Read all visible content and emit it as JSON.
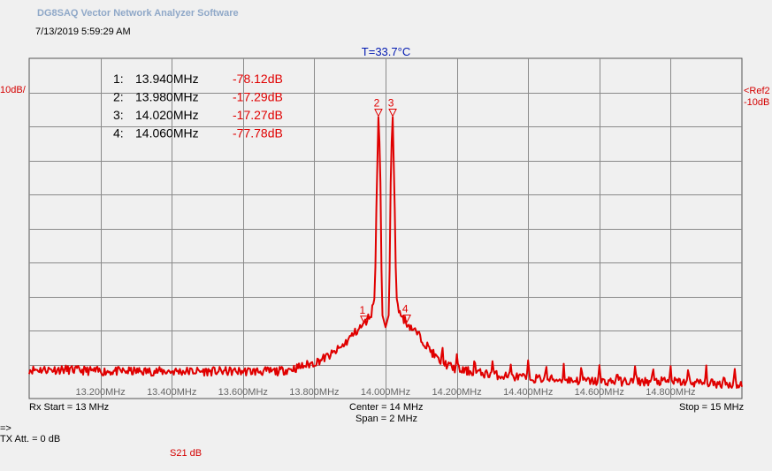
{
  "app_title": "DG8SAQ Vector Network Analyzer Software",
  "timestamp": "7/13/2019   5:59:29 AM",
  "temperature": "T=33.7°C",
  "left_ref": "10dB/",
  "right_ref_line1": "<Ref2",
  "right_ref_line2": "-10dB",
  "rx_start": "Rx Start = 13 MHz",
  "center": "Center = 14 MHz",
  "span": "Span = 2 MHz",
  "stop": "Stop = 15 MHz",
  "arrow": "=>",
  "tx_att": "TX Att.  = 0 dB",
  "trace_label": "S21  dB",
  "colors": {
    "trace": "#e00000",
    "grid": "#8a8a8a",
    "plot_bg": "#f0f0f0",
    "temperature": "#0018b0",
    "title": "#8fa8c8"
  },
  "chart_data": {
    "type": "line",
    "title": "",
    "xlabel": "",
    "ylabel": "",
    "x_unit": "MHz",
    "y_unit": "dB",
    "xlim": [
      13.0,
      15.0
    ],
    "ylim": [
      -100,
      0
    ],
    "y_scale_per_div": 10,
    "x_tick_labels": [
      "13.200MHz",
      "13.400MHz",
      "13.600MHz",
      "13.800MHz",
      "14.000MHz",
      "14.200MHz",
      "14.400MHz",
      "14.600MHz",
      "14.800MHz"
    ],
    "x_ticks": [
      13.2,
      13.4,
      13.6,
      13.8,
      14.0,
      14.2,
      14.4,
      14.6,
      14.8
    ],
    "grid": true,
    "markers": [
      {
        "id": "1",
        "index_label": "1:",
        "freq": "13.940MHz",
        "value": "-78.12dB",
        "x": 13.94,
        "y": -78.12
      },
      {
        "id": "2",
        "index_label": "2:",
        "freq": "13.980MHz",
        "value": "-17.29dB",
        "x": 13.98,
        "y": -17.29
      },
      {
        "id": "3",
        "index_label": "3:",
        "freq": "14.020MHz",
        "value": "-17.27dB",
        "x": 14.02,
        "y": -17.27
      },
      {
        "id": "4",
        "index_label": "4:",
        "freq": "14.060MHz",
        "value": "-77.78dB",
        "x": 14.06,
        "y": -77.78
      }
    ],
    "series": [
      {
        "x": [
          13.0,
          13.1,
          13.2,
          13.3,
          13.4,
          13.5,
          13.6,
          13.7,
          13.75,
          13.8,
          13.85,
          13.88,
          13.91,
          13.94,
          13.96,
          13.97,
          13.975,
          13.98,
          13.985,
          13.99,
          14.0,
          14.01,
          14.015,
          14.02,
          14.025,
          14.03,
          14.04,
          14.06,
          14.09,
          14.12,
          14.15,
          14.2,
          14.3,
          14.4,
          14.5,
          14.6,
          14.7,
          14.8,
          14.9,
          15.0
        ],
        "y": [
          -91.5,
          -91.5,
          -92,
          -92,
          -92,
          -92,
          -92,
          -92,
          -91,
          -89.5,
          -87,
          -84.5,
          -81,
          -78.1,
          -75,
          -70,
          -40,
          -17.3,
          -30,
          -75,
          -79,
          -75,
          -30,
          -17.3,
          -40,
          -70,
          -75,
          -77.8,
          -81,
          -85,
          -89,
          -91.5,
          -93,
          -94,
          -94.5,
          -95,
          -95,
          -95,
          -95.5,
          -96
        ]
      }
    ],
    "spur_freqs": [
      14.16,
      14.2,
      14.25,
      14.3,
      14.35,
      14.4,
      14.45,
      14.5,
      14.55,
      14.6,
      14.65,
      14.7,
      14.75,
      14.8,
      14.85,
      14.9,
      14.95,
      14.98
    ]
  }
}
